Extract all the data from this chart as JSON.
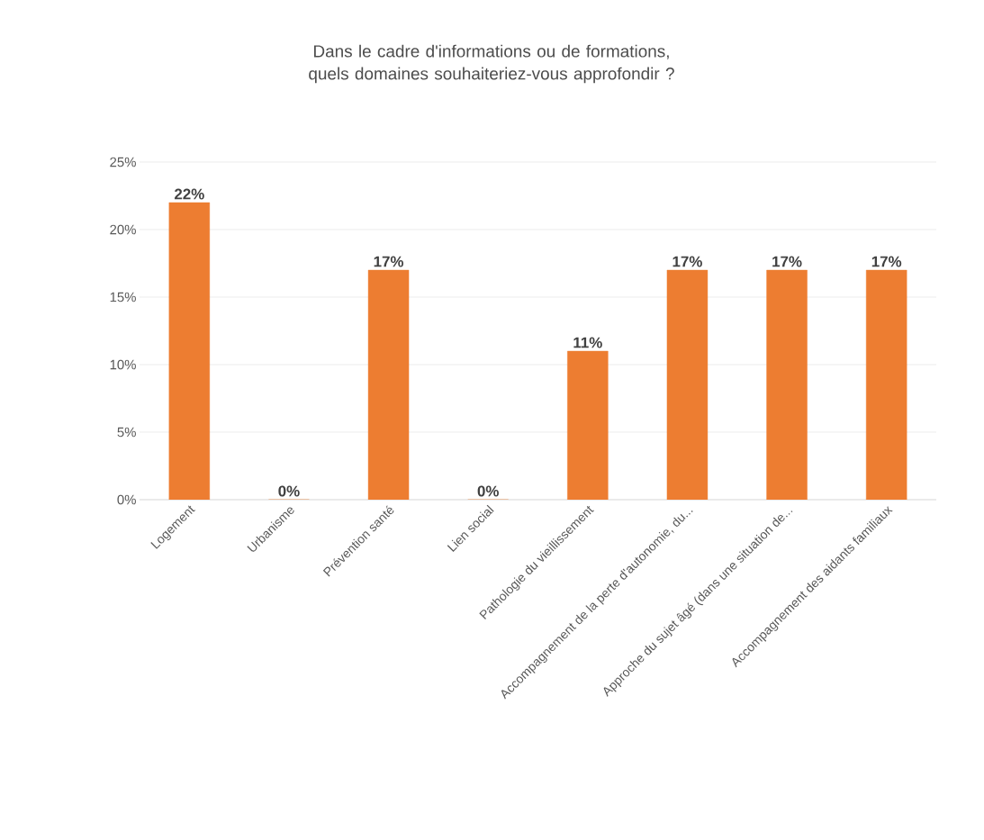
{
  "chart_data": {
    "type": "bar",
    "title": "Dans le cadre d'informations ou de formations, quels domaines souhaiteriez-vous approfondir ?",
    "categories": [
      "Logement",
      "Urbanisme",
      "Prévention santé",
      "Lien social",
      "Pathologie du vieillissement",
      "Accompagnement de la perte d'autonomie, du...",
      "Approche du sujet âgé (dans une situation de...",
      "Accompagnement des aidants familiaux"
    ],
    "values": [
      22,
      0,
      17,
      0,
      11,
      17,
      17,
      17
    ],
    "value_labels": [
      "22%",
      "0%",
      "17%",
      "0%",
      "11%",
      "17%",
      "17%",
      "17%"
    ],
    "color": "#ed7d31",
    "ylim": [
      0,
      25
    ],
    "yticks": [
      {
        "value": 0,
        "label": "0%"
      },
      {
        "value": 5,
        "label": "5%"
      },
      {
        "value": 10,
        "label": "10%"
      },
      {
        "value": 15,
        "label": "15%"
      },
      {
        "value": 20,
        "label": "20%"
      },
      {
        "value": 25,
        "label": "25%"
      }
    ],
    "grid": "y"
  }
}
